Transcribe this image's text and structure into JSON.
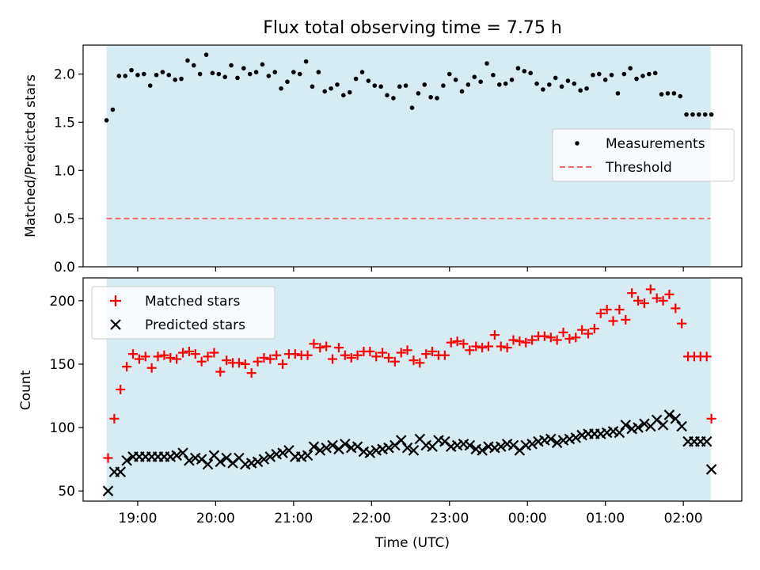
{
  "chart_data": [
    {
      "type": "scatter",
      "title": "Flux total observing time = 7.75 h",
      "ylabel": "Matched/Predicted stars",
      "ylim": [
        0,
        2.3
      ],
      "yticks": [
        0.0,
        0.5,
        1.0,
        1.5,
        2.0
      ],
      "ytick_labels": [
        "0.0",
        "0.5",
        "1.0",
        "1.5",
        "2.0"
      ],
      "shaded_span": [
        18.6,
        26.35
      ],
      "threshold": {
        "name": "Threshold",
        "value": 0.5,
        "x_range": [
          18.6,
          26.35
        ],
        "color": "#f26a6a"
      },
      "legend": [
        {
          "label": "Measurements",
          "marker": "dot",
          "color": "#000000"
        },
        {
          "label": "Threshold",
          "marker": "dashed-line",
          "color": "#f26a6a"
        }
      ],
      "legend_position": "center-right",
      "series": [
        {
          "name": "Measurements",
          "color": "#000000",
          "x": [
            18.6,
            18.68,
            18.76,
            18.84,
            18.92,
            19.0,
            19.08,
            19.16,
            19.24,
            19.32,
            19.4,
            19.48,
            19.56,
            19.64,
            19.72,
            19.8,
            19.88,
            19.96,
            20.04,
            20.12,
            20.2,
            20.28,
            20.36,
            20.44,
            20.52,
            20.6,
            20.68,
            20.76,
            20.84,
            20.92,
            21.0,
            21.08,
            21.16,
            21.24,
            21.32,
            21.4,
            21.48,
            21.56,
            21.64,
            21.72,
            21.8,
            21.88,
            21.96,
            22.04,
            22.12,
            22.2,
            22.28,
            22.36,
            22.44,
            22.52,
            22.6,
            22.68,
            22.76,
            22.84,
            22.92,
            23.0,
            23.08,
            23.16,
            23.24,
            23.32,
            23.4,
            23.48,
            23.56,
            23.64,
            23.72,
            23.8,
            23.88,
            23.96,
            24.04,
            24.12,
            24.2,
            24.28,
            24.36,
            24.44,
            24.52,
            24.6,
            24.68,
            24.76,
            24.84,
            24.92,
            25.0,
            25.08,
            25.16,
            25.24,
            25.32,
            25.4,
            25.48,
            25.56,
            25.64,
            25.72,
            25.8,
            25.88,
            25.96,
            26.04,
            26.12,
            26.2,
            26.28,
            26.36
          ],
          "values": [
            1.52,
            1.63,
            1.98,
            1.98,
            2.04,
            1.99,
            2.0,
            1.88,
            1.99,
            2.02,
            1.99,
            1.94,
            1.95,
            2.14,
            2.09,
            2.0,
            2.2,
            2.01,
            2.0,
            1.97,
            2.09,
            1.96,
            2.06,
            2.0,
            2.02,
            2.1,
            1.98,
            2.02,
            1.85,
            1.92,
            2.02,
            2.0,
            2.13,
            1.87,
            2.02,
            1.82,
            1.85,
            1.89,
            1.78,
            1.81,
            1.95,
            2.02,
            1.93,
            1.88,
            1.87,
            1.78,
            1.75,
            1.87,
            1.88,
            1.65,
            1.8,
            1.89,
            1.76,
            1.75,
            1.88,
            2.0,
            1.94,
            1.82,
            1.89,
            1.97,
            1.92,
            2.11,
            1.99,
            1.89,
            1.9,
            1.94,
            2.06,
            2.03,
            2.01,
            1.9,
            1.84,
            1.89,
            1.96,
            1.87,
            1.93,
            1.9,
            1.83,
            1.85,
            1.99,
            2.0,
            1.94,
            1.99,
            1.8,
            2.0,
            2.06,
            1.95,
            1.98,
            2.0,
            2.01,
            1.79,
            1.8,
            1.8,
            1.77,
            1.58,
            1.58,
            1.58,
            1.58,
            1.58
          ]
        }
      ]
    },
    {
      "type": "scatter",
      "xlabel": "Time (UTC)",
      "ylabel": "Count",
      "ylim": [
        42,
        218
      ],
      "xlim": [
        18.3,
        26.75
      ],
      "yticks": [
        50,
        100,
        150,
        200
      ],
      "ytick_labels": [
        "50",
        "100",
        "150",
        "200"
      ],
      "xticks": [
        19,
        20,
        21,
        22,
        23,
        24,
        25,
        26
      ],
      "xtick_labels": [
        "19:00",
        "20:00",
        "21:00",
        "22:00",
        "23:00",
        "00:00",
        "01:00",
        "02:00"
      ],
      "shaded_span": [
        18.6,
        26.35
      ],
      "legend": [
        {
          "label": "Matched stars",
          "marker": "plus",
          "color": "#ff0000"
        },
        {
          "label": "Predicted stars",
          "marker": "x",
          "color": "#000000"
        }
      ],
      "legend_position": "top-left",
      "series": [
        {
          "name": "Matched stars",
          "marker": "plus",
          "color": "#ff0000",
          "x": [
            18.62,
            18.7,
            18.78,
            18.86,
            18.94,
            19.02,
            19.1,
            19.18,
            19.26,
            19.34,
            19.42,
            19.5,
            19.58,
            19.66,
            19.74,
            19.82,
            19.9,
            19.98,
            20.06,
            20.14,
            20.22,
            20.3,
            20.38,
            20.46,
            20.54,
            20.62,
            20.7,
            20.78,
            20.86,
            20.94,
            21.02,
            21.1,
            21.18,
            21.26,
            21.34,
            21.42,
            21.5,
            21.58,
            21.66,
            21.74,
            21.82,
            21.9,
            21.98,
            22.06,
            22.14,
            22.22,
            22.3,
            22.38,
            22.46,
            22.54,
            22.62,
            22.7,
            22.78,
            22.86,
            22.94,
            23.02,
            23.1,
            23.18,
            23.26,
            23.34,
            23.42,
            23.5,
            23.58,
            23.66,
            23.74,
            23.82,
            23.9,
            23.98,
            24.06,
            24.14,
            24.22,
            24.3,
            24.38,
            24.46,
            24.54,
            24.62,
            24.7,
            24.78,
            24.86,
            24.94,
            25.02,
            25.1,
            25.18,
            25.26,
            25.34,
            25.42,
            25.5,
            25.58,
            25.66,
            25.74,
            25.82,
            25.9,
            25.98,
            26.06,
            26.14,
            26.22,
            26.3,
            26.36
          ],
          "values": [
            76,
            107,
            130,
            148,
            158,
            154,
            156,
            147,
            156,
            157,
            155,
            154,
            159,
            160,
            158,
            152,
            156,
            159,
            144,
            153,
            151,
            151,
            150,
            143,
            152,
            155,
            154,
            157,
            150,
            158,
            158,
            157,
            157,
            166,
            163,
            164,
            154,
            163,
            157,
            155,
            157,
            160,
            160,
            156,
            159,
            155,
            152,
            159,
            161,
            153,
            151,
            158,
            160,
            157,
            157,
            167,
            168,
            166,
            161,
            164,
            163,
            164,
            173,
            164,
            163,
            169,
            168,
            167,
            169,
            172,
            172,
            171,
            169,
            175,
            170,
            171,
            177,
            174,
            178,
            190,
            193,
            184,
            193,
            185,
            206,
            200,
            198,
            209,
            202,
            200,
            205,
            194,
            182,
            156,
            156,
            156,
            156,
            107
          ]
        },
        {
          "name": "Predicted stars",
          "marker": "x",
          "color": "#000000",
          "x": [
            18.62,
            18.7,
            18.78,
            18.86,
            18.94,
            19.02,
            19.1,
            19.18,
            19.26,
            19.34,
            19.42,
            19.5,
            19.58,
            19.66,
            19.74,
            19.82,
            19.9,
            19.98,
            20.06,
            20.14,
            20.22,
            20.3,
            20.38,
            20.46,
            20.54,
            20.62,
            20.7,
            20.78,
            20.86,
            20.94,
            21.02,
            21.1,
            21.18,
            21.26,
            21.34,
            21.42,
            21.5,
            21.58,
            21.66,
            21.74,
            21.82,
            21.9,
            21.98,
            22.06,
            22.14,
            22.22,
            22.3,
            22.38,
            22.46,
            22.54,
            22.62,
            22.7,
            22.78,
            22.86,
            22.94,
            23.02,
            23.1,
            23.18,
            23.26,
            23.34,
            23.42,
            23.5,
            23.58,
            23.66,
            23.74,
            23.82,
            23.9,
            23.98,
            24.06,
            24.14,
            24.22,
            24.3,
            24.38,
            24.46,
            24.54,
            24.62,
            24.7,
            24.78,
            24.86,
            24.94,
            25.02,
            25.1,
            25.18,
            25.26,
            25.34,
            25.42,
            25.5,
            25.58,
            25.66,
            25.74,
            25.82,
            25.9,
            25.98,
            26.06,
            26.14,
            26.22,
            26.3,
            26.36
          ],
          "values": [
            50,
            65,
            65,
            74,
            77,
            77,
            77,
            77,
            77,
            77,
            77,
            78,
            80,
            74,
            76,
            75,
            71,
            78,
            73,
            76,
            72,
            76,
            71,
            72,
            73,
            75,
            77,
            79,
            80,
            82,
            77,
            77,
            78,
            85,
            82,
            84,
            86,
            83,
            87,
            84,
            85,
            81,
            80,
            82,
            83,
            84,
            86,
            90,
            84,
            82,
            91,
            86,
            85,
            90,
            89,
            85,
            86,
            87,
            86,
            83,
            82,
            85,
            84,
            85,
            87,
            86,
            82,
            86,
            87,
            89,
            90,
            91,
            88,
            90,
            91,
            92,
            94,
            95,
            95,
            95,
            96,
            97,
            96,
            102,
            99,
            100,
            103,
            101,
            106,
            102,
            110,
            107,
            101,
            89,
            89,
            89,
            89,
            67
          ]
        }
      ]
    }
  ]
}
